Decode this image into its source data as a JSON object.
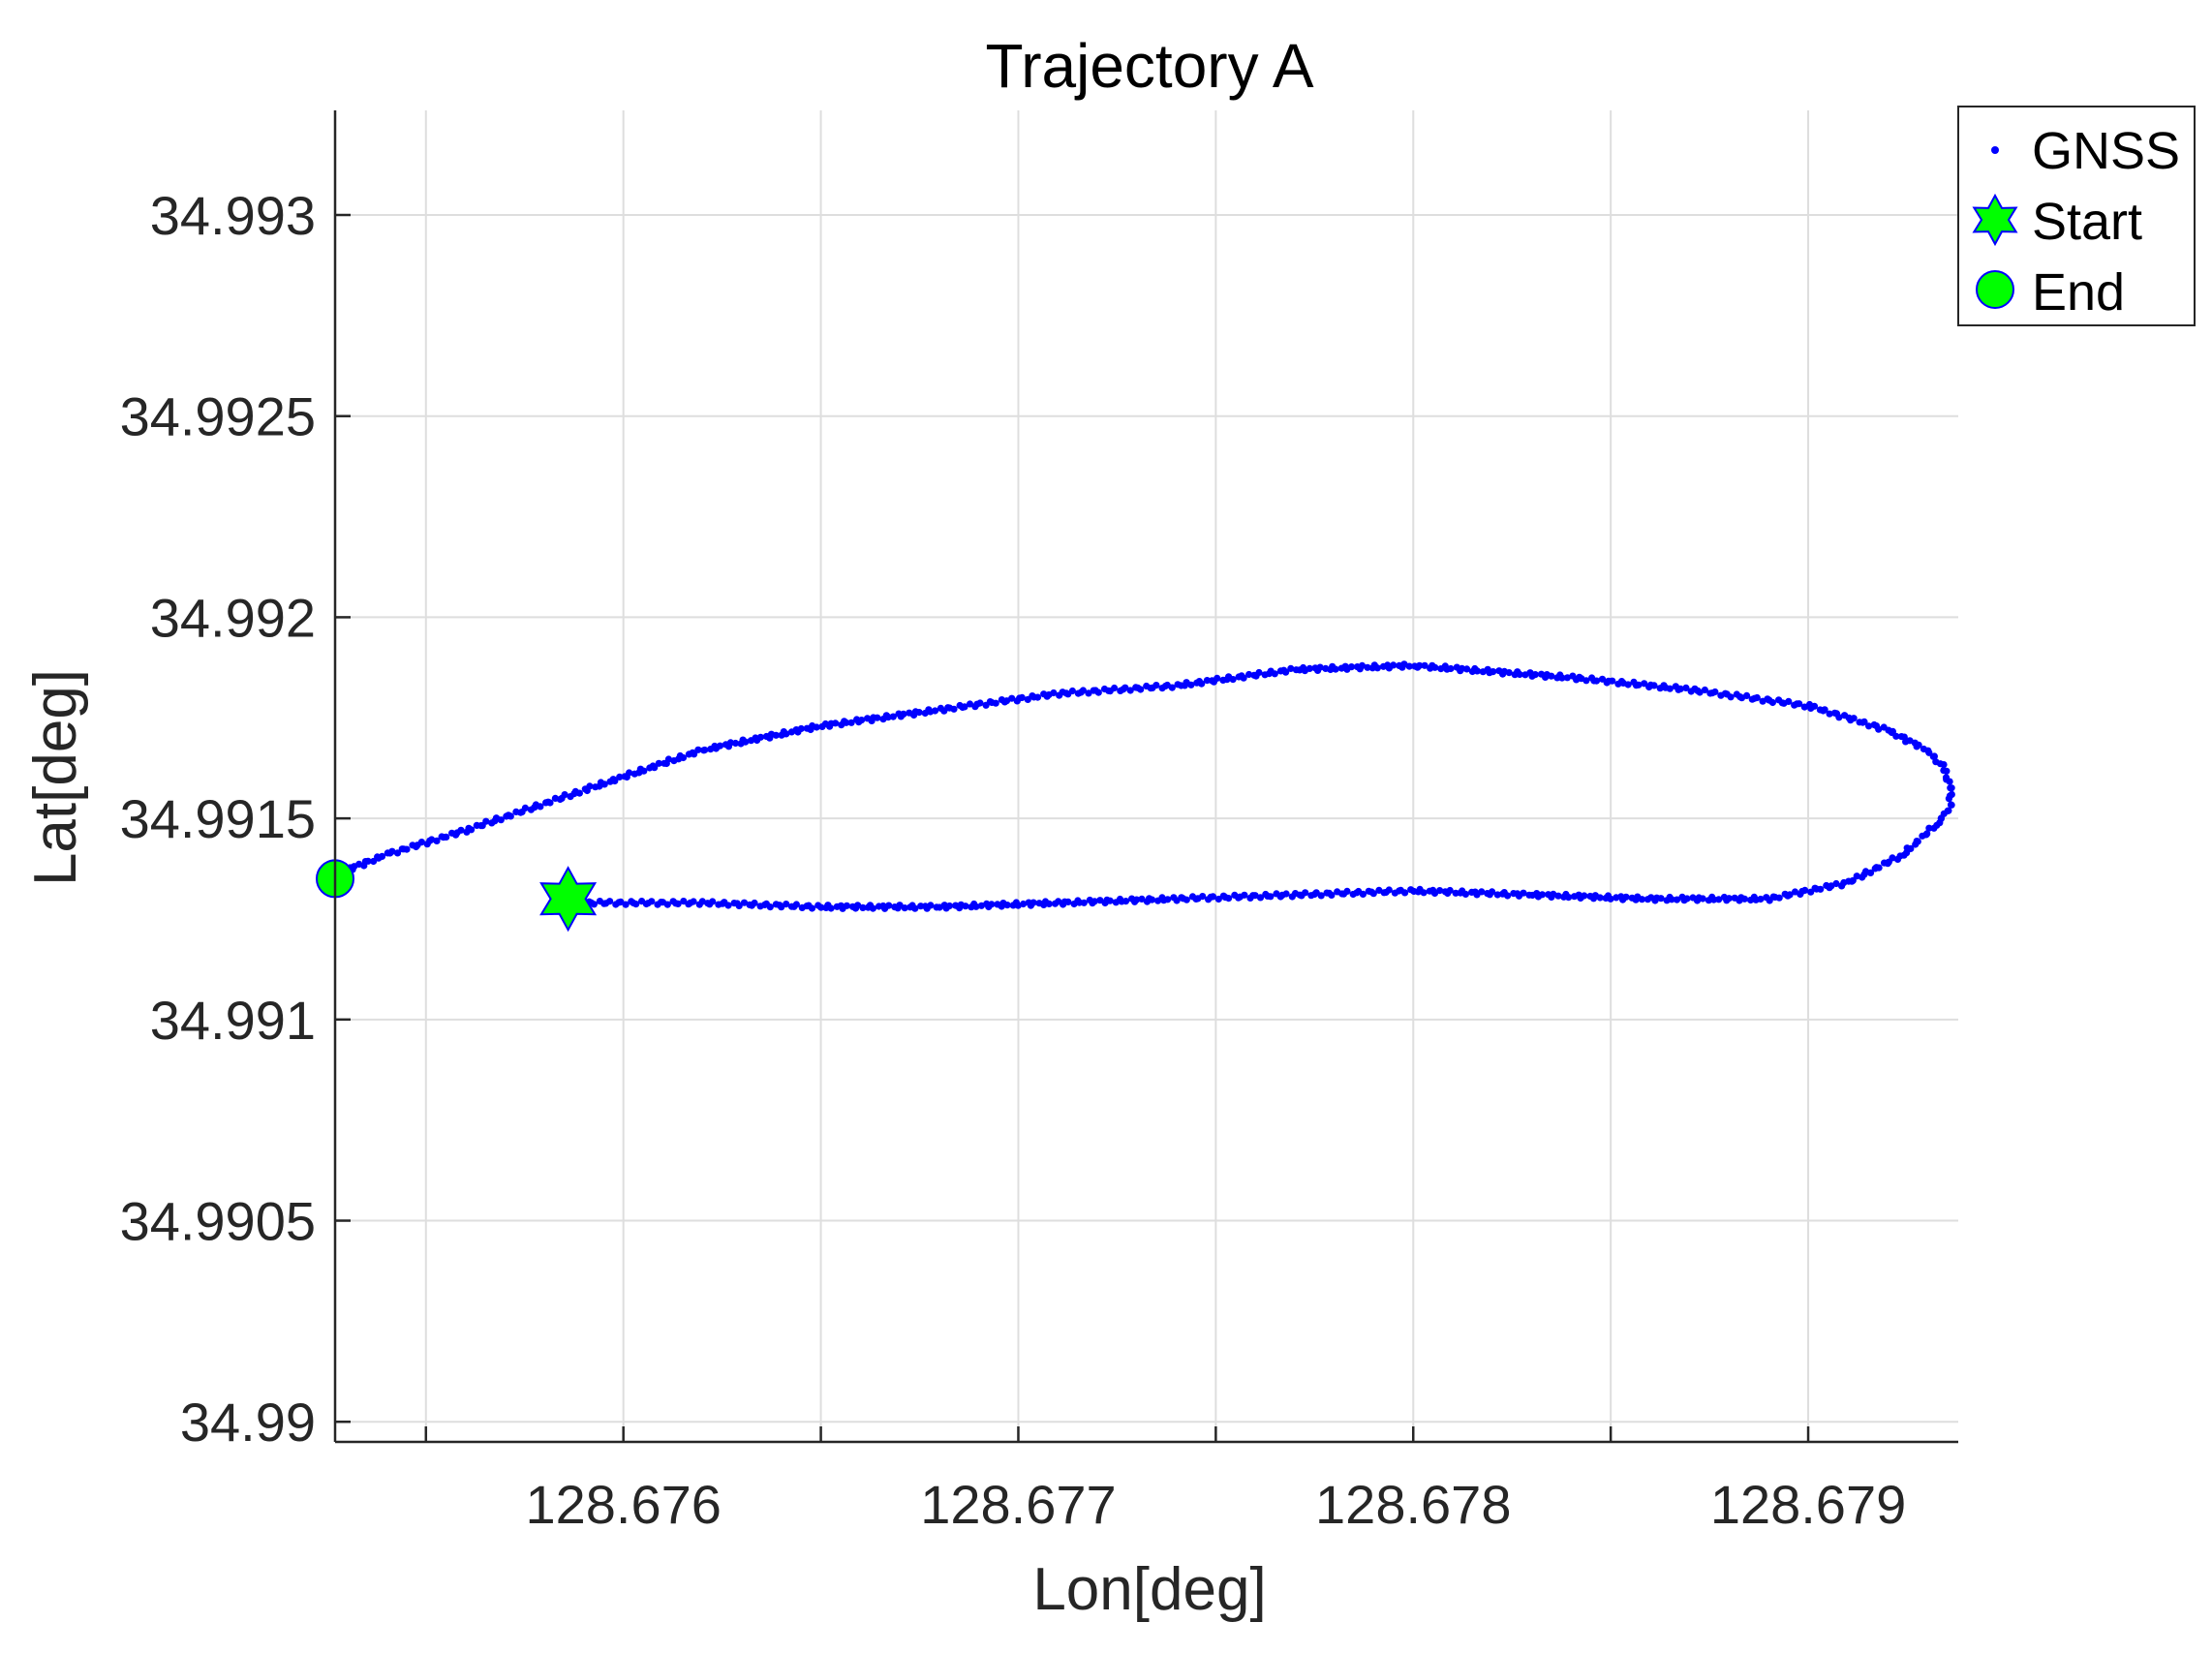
{
  "chart_data": {
    "type": "scatter",
    "title": "Trajectory A",
    "xlabel": "Lon[deg]",
    "ylabel": "Lat[deg]",
    "xlim": [
      128.67527,
      128.67938
    ],
    "ylim": [
      34.98995,
      34.99326
    ],
    "xticks": [
      128.6755,
      128.676,
      128.6765,
      128.677,
      128.6775,
      128.678,
      128.6785,
      128.679
    ],
    "xtick_labels": [
      "",
      "128.676",
      "",
      "128.677",
      "",
      "128.678",
      "",
      "128.679"
    ],
    "yticks": [
      34.99,
      34.9905,
      34.991,
      34.9915,
      34.992,
      34.9925,
      34.993
    ],
    "ytick_labels": [
      "34.99",
      "34.9905",
      "34.991",
      "34.9915",
      "34.992",
      "34.9925",
      "34.993"
    ],
    "grid": true,
    "legend_position": "top-right",
    "colors": {
      "gnss": "#0000ff",
      "marker_fill": "#00ff00",
      "marker_edge": "#0000ff"
    },
    "series": [
      {
        "name": "GNSS",
        "marker": "dot",
        "x": [
          128.6759,
          128.6762,
          128.6765,
          128.6768,
          128.6771,
          128.6774,
          128.6777,
          128.678,
          128.6783,
          128.6786,
          128.6789,
          128.6791,
          128.67924,
          128.67933,
          128.67936,
          128.67936,
          128.67934,
          128.6793,
          128.6792,
          128.679,
          128.6787,
          128.6784,
          128.678,
          128.6777,
          128.6774,
          128.6771,
          128.6768,
          128.6765,
          128.6762,
          128.6759,
          128.6756,
          128.6754,
          128.67527
        ],
        "y": [
          34.99129,
          34.99129,
          34.99128,
          34.99128,
          34.99129,
          34.9913,
          34.99131,
          34.99132,
          34.99131,
          34.9913,
          34.9913,
          34.99134,
          34.99141,
          34.99149,
          34.99153,
          34.99158,
          34.99163,
          34.99167,
          34.99172,
          34.99178,
          34.99182,
          34.99185,
          34.99188,
          34.99187,
          34.99183,
          34.99181,
          34.99177,
          34.99173,
          34.99167,
          34.99157,
          34.99147,
          34.99141,
          34.99136
        ]
      },
      {
        "name": "Start",
        "marker": "hexagram",
        "x": [
          128.67586
        ],
        "y": [
          34.9913
        ]
      },
      {
        "name": "End",
        "marker": "circle",
        "x": [
          128.67527
        ],
        "y": [
          34.99135
        ]
      }
    ]
  }
}
